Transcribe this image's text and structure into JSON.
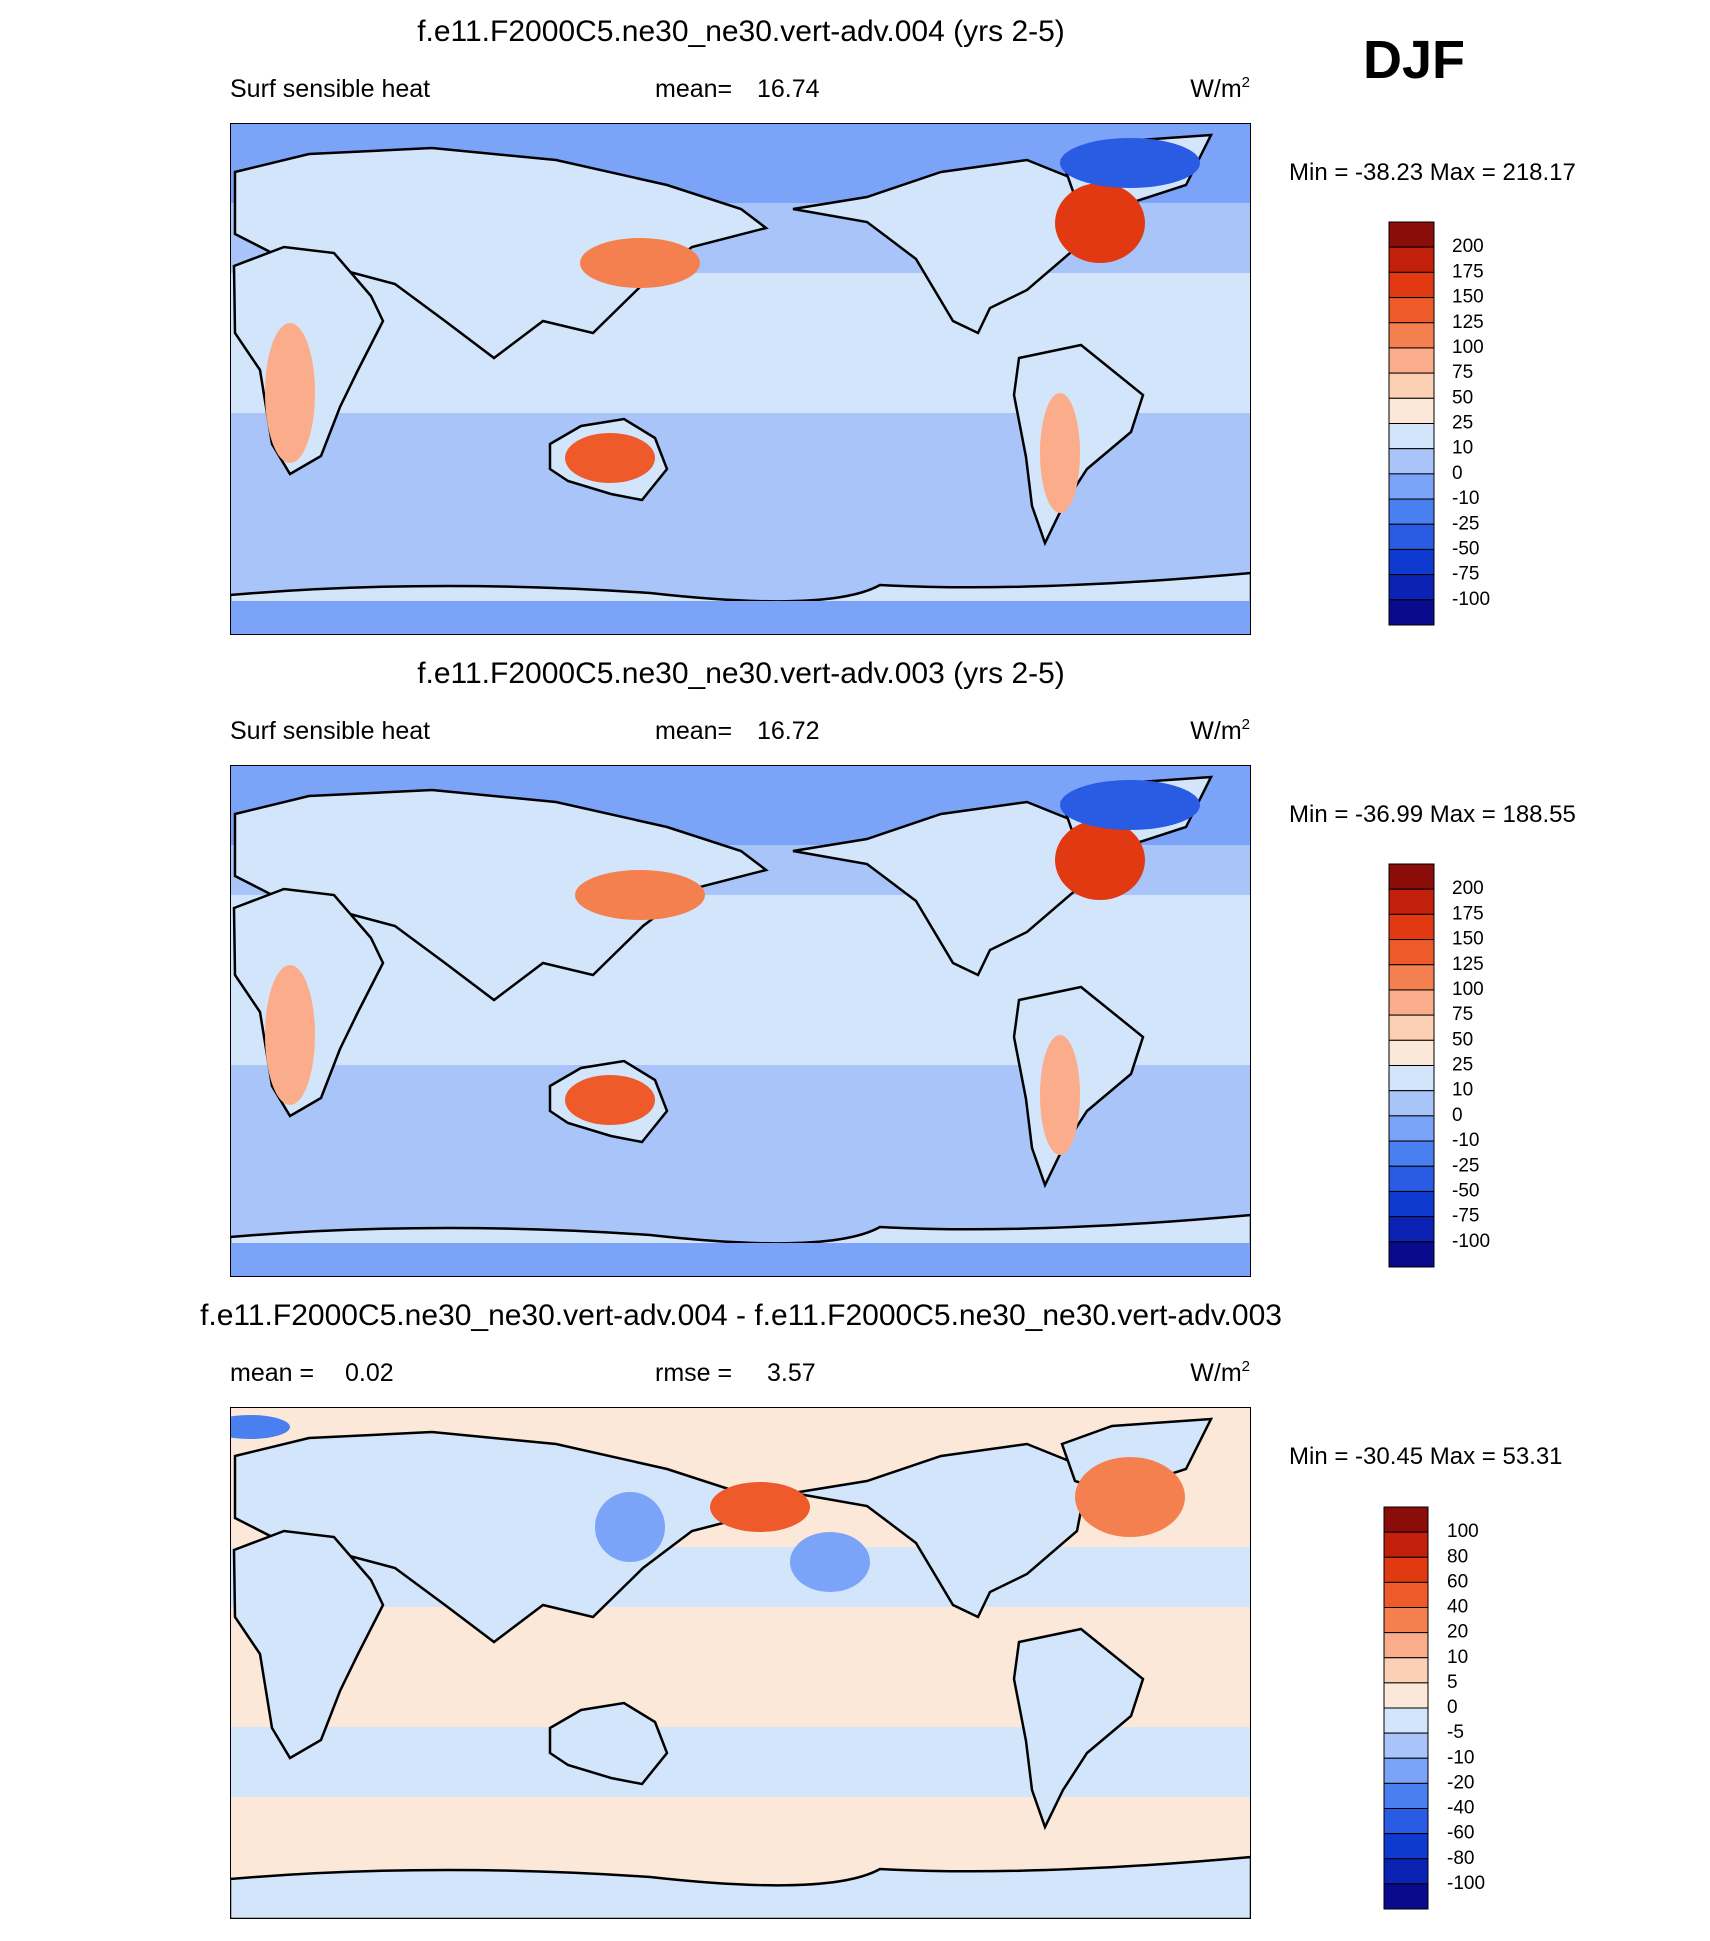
{
  "header": {
    "season": "DJF"
  },
  "panels": [
    {
      "title": "f.e11.F2000C5.ne30_ne30.vert-adv.004 (yrs 2-5)",
      "variable": "Surf sensible heat",
      "stats": [
        {
          "label": "mean=",
          "value": 16.74
        }
      ],
      "units": "W/m",
      "units_exponent": "2",
      "min_label": "Min =",
      "min": -38.23,
      "max_label": "Max =",
      "max": 218.17,
      "colorbar": {
        "levels": [
          200,
          175,
          150,
          125,
          100,
          75,
          50,
          25,
          10,
          0,
          -10,
          -25,
          -50,
          -75,
          -100
        ],
        "colors": [
          "#8b0d0a",
          "#c3200c",
          "#e13a12",
          "#ee5a2a",
          "#f5804f",
          "#fbac8a",
          "#fcd0b4",
          "#fbe8d8",
          "#d3e5fb",
          "#a8c4f8",
          "#7ba3f7",
          "#4a7ff0",
          "#2a5be3",
          "#0f3ad0",
          "#0b22b4",
          "#0a0a8c"
        ]
      }
    },
    {
      "title": "f.e11.F2000C5.ne30_ne30.vert-adv.003 (yrs 2-5)",
      "variable": "Surf sensible heat",
      "stats": [
        {
          "label": "mean=",
          "value": 16.72
        }
      ],
      "units": "W/m",
      "units_exponent": "2",
      "min_label": "Min =",
      "min": -36.99,
      "max_label": "Max =",
      "max": 188.55,
      "colorbar": {
        "levels": [
          200,
          175,
          150,
          125,
          100,
          75,
          50,
          25,
          10,
          0,
          -10,
          -25,
          -50,
          -75,
          -100
        ],
        "colors": [
          "#8b0d0a",
          "#c3200c",
          "#e13a12",
          "#ee5a2a",
          "#f5804f",
          "#fbac8a",
          "#fcd0b4",
          "#fbe8d8",
          "#d3e5fb",
          "#a8c4f8",
          "#7ba3f7",
          "#4a7ff0",
          "#2a5be3",
          "#0f3ad0",
          "#0b22b4",
          "#0a0a8c"
        ]
      }
    },
    {
      "title": "f.e11.F2000C5.ne30_ne30.vert-adv.004 - f.e11.F2000C5.ne30_ne30.vert-adv.003",
      "stats": [
        {
          "label": "mean =",
          "value": 0.02
        },
        {
          "label": "rmse =",
          "value": 3.57
        }
      ],
      "units": "W/m",
      "units_exponent": "2",
      "min_label": "Min =",
      "min": -30.45,
      "max_label": "Max =",
      "max": 53.31,
      "colorbar": {
        "levels": [
          100,
          80,
          60,
          40,
          20,
          10,
          5,
          0,
          -5,
          -10,
          -20,
          -40,
          -60,
          -80,
          -100
        ],
        "colors": [
          "#8b0d0a",
          "#c3200c",
          "#e13a12",
          "#ee5a2a",
          "#f5804f",
          "#fbac8a",
          "#fcd0b4",
          "#fbe8d8",
          "#d3e5fb",
          "#a8c4f8",
          "#7ba3f7",
          "#4a7ff0",
          "#2a5be3",
          "#0f3ad0",
          "#0b22b4",
          "#0a0a8c"
        ]
      }
    }
  ]
}
